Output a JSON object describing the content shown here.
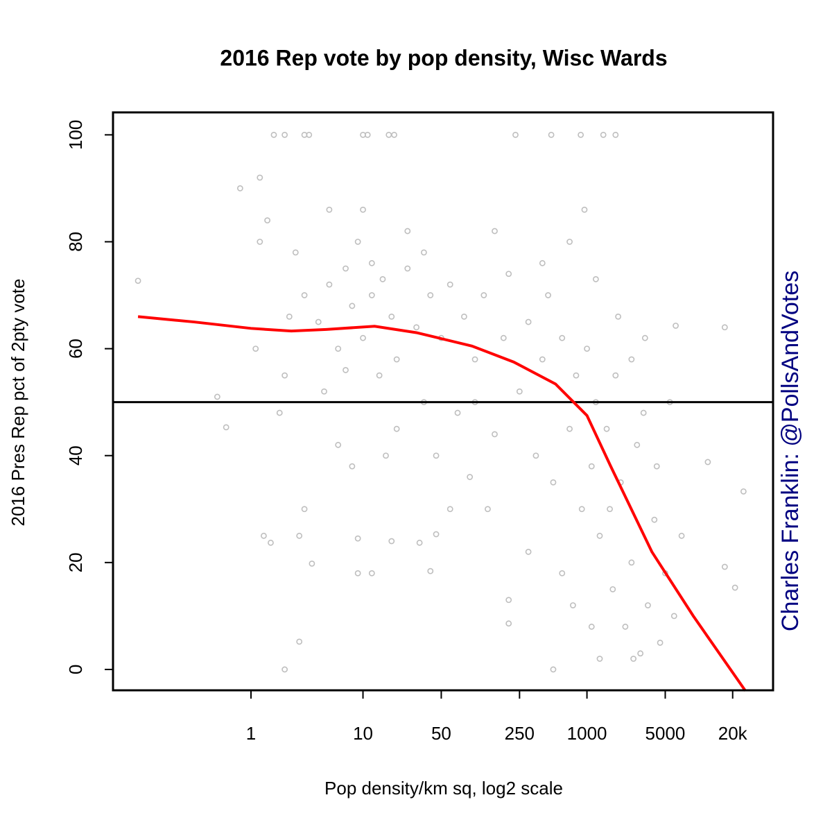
{
  "chart_data": {
    "type": "scatter",
    "title": "2016 Rep vote by pop density, Wisc Wards",
    "xlabel": "Pop density/km sq, log2 scale",
    "ylabel": "2016 Pres Rep pct of 2pty vote",
    "annotation": "Charles Franklin: @PollsAndVotes",
    "xlog": true,
    "xlim": [
      0.0586,
      45900
    ],
    "ylim": [
      -3.9,
      104.2
    ],
    "xticks": [
      1,
      10,
      50,
      250,
      1000,
      5000,
      {
        "value": 20000,
        "label": "20k"
      }
    ],
    "yticks": [
      0,
      20,
      40,
      60,
      80,
      100
    ],
    "hline": 50,
    "series": [
      {
        "color": "#bebebe",
        "x": [
          0.098,
          0.5,
          0.6,
          0.8,
          1.2,
          1.6,
          2,
          3,
          3.3,
          10,
          11,
          17,
          19,
          230,
          480,
          880,
          1400,
          1800,
          2,
          500,
          2.7,
          1.3,
          1.5,
          2.7,
          3,
          3.5,
          9,
          9,
          12,
          18,
          32,
          40,
          45,
          200,
          200,
          6200,
          17000,
          25000,
          21000,
          17000,
          12000,
          3,
          4,
          5,
          6,
          7,
          8,
          9,
          10,
          12,
          14,
          15,
          18,
          20,
          25,
          30,
          35,
          40,
          50,
          60,
          70,
          80,
          100,
          120,
          150,
          180,
          200,
          250,
          300,
          350,
          400,
          450,
          500,
          600,
          700,
          800,
          900,
          1000,
          1100,
          1200,
          1300,
          1500,
          1700,
          1800,
          2000,
          2200,
          2500,
          2800,
          3000,
          3500,
          4000,
          4500,
          5000,
          6000,
          7000,
          2,
          2.5,
          1.8,
          1.1,
          1.4,
          6,
          8,
          20,
          25,
          45,
          90,
          130,
          300,
          600,
          750,
          1100,
          1300,
          1600,
          2600,
          3200,
          4200,
          5500,
          700,
          950,
          1200,
          400,
          150,
          2500,
          1900,
          3300,
          10,
          5,
          1.2,
          16,
          60,
          100,
          12,
          35,
          7,
          2.2,
          4.5
        ],
        "values": [
          72.7,
          51,
          45.3,
          90,
          92,
          100,
          100,
          100,
          100,
          100,
          100,
          100,
          100,
          100,
          100,
          100,
          100,
          100,
          0,
          0,
          5.2,
          25,
          23.7,
          25,
          30,
          19.8,
          24.5,
          18,
          18,
          24,
          23.7,
          18.4,
          25.3,
          8.6,
          13,
          64.3,
          64,
          33.3,
          15.3,
          19.2,
          38.8,
          70,
          65,
          72,
          60,
          75,
          68,
          80,
          62,
          70,
          55,
          73,
          66,
          58,
          75,
          64,
          50,
          70,
          62,
          72,
          48,
          66,
          58,
          70,
          44,
          62,
          74,
          52,
          65,
          40,
          58,
          70,
          35,
          62,
          45,
          55,
          30,
          60,
          38,
          50,
          25,
          45,
          15,
          55,
          35,
          8,
          20,
          42,
          3,
          12,
          28,
          5,
          18,
          10,
          25,
          55,
          78,
          48,
          60,
          84,
          42,
          38,
          45,
          82,
          40,
          36,
          30,
          22,
          18,
          12,
          8,
          2,
          30,
          2,
          48,
          38,
          50,
          80,
          86,
          73,
          76,
          82,
          58,
          66,
          62,
          86,
          86,
          80,
          40,
          30,
          50,
          76,
          78,
          56,
          66,
          52
        ]
      },
      {
        "type": "line",
        "color": "#ff0000",
        "x": [
          0.098,
          0.31,
          1,
          2.29,
          4.7,
          12.7,
          30,
          94,
          222,
          524,
          1000,
          1630,
          3800,
          8900,
          26000
        ],
        "values": [
          66,
          65,
          63.8,
          63.3,
          63.6,
          64.2,
          63,
          60.5,
          57.5,
          53.4,
          47.5,
          38,
          22,
          10,
          -4
        ]
      }
    ]
  }
}
